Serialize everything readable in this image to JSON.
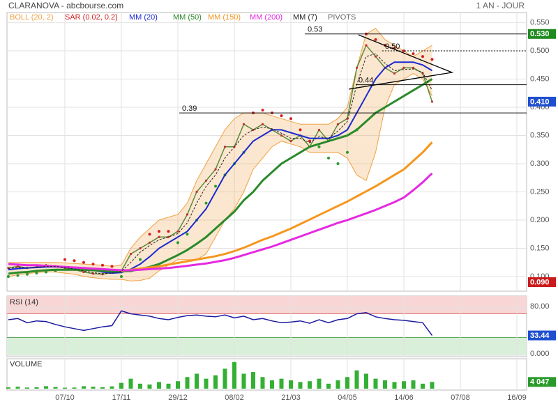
{
  "chart_data": [
    {
      "type": "line",
      "title": "CLARANOVA - abcbourse.com",
      "subtitle": "1 AN - JOUR",
      "categories": [
        null,
        null,
        null,
        null,
        null,
        null,
        "07/10",
        null,
        null,
        null,
        null,
        null,
        "17/11",
        null,
        null,
        null,
        null,
        null,
        "29/12",
        null,
        null,
        null,
        null,
        null,
        "08/02",
        null,
        null,
        null,
        null,
        null,
        "21/03",
        null,
        null,
        null,
        null,
        null,
        "04/05",
        null,
        null,
        null,
        null,
        null,
        "14/06",
        null,
        null,
        null,
        null,
        null,
        "07/08",
        null,
        null,
        null,
        null,
        null,
        "16/09",
        null
      ],
      "values": [
        0.115,
        0.118,
        0.115,
        0.117,
        0.12,
        0.118,
        0.115,
        0.112,
        0.108,
        0.105,
        0.104,
        0.107,
        0.11,
        0.14,
        0.15,
        0.16,
        0.17,
        0.17,
        0.18,
        0.21,
        0.25,
        0.27,
        0.29,
        0.33,
        0.33,
        0.37,
        0.36,
        0.37,
        0.36,
        0.35,
        0.34,
        0.35,
        0.33,
        0.36,
        0.34,
        0.37,
        0.38,
        0.47,
        0.51,
        0.49,
        0.47,
        0.46,
        0.47,
        0.47,
        0.46,
        0.41,
        null,
        null,
        null,
        null,
        null,
        null,
        null,
        null,
        null,
        null
      ],
      "color": "#2a8a2a",
      "series": [
        {
          "name": "BOLL (20, 2)",
          "color": "#f0a040",
          "kind": "band",
          "upper": [
            0.125,
            0.125,
            0.125,
            0.125,
            0.125,
            0.125,
            0.124,
            0.123,
            0.122,
            0.121,
            0.12,
            0.118,
            0.12,
            0.15,
            0.17,
            0.185,
            0.2,
            0.205,
            0.21,
            0.23,
            0.27,
            0.3,
            0.33,
            0.36,
            0.38,
            0.39,
            0.39,
            0.39,
            0.385,
            0.38,
            0.375,
            0.37,
            0.37,
            0.37,
            0.37,
            0.38,
            0.4,
            0.47,
            0.53,
            0.54,
            0.52,
            0.51,
            0.5,
            0.49,
            0.5,
            0.51,
            null,
            null,
            null,
            null,
            null,
            null,
            null,
            null,
            null,
            null
          ],
          "lower": [
            0.1,
            0.103,
            0.105,
            0.107,
            0.108,
            0.108,
            0.106,
            0.104,
            0.1,
            0.098,
            0.096,
            0.095,
            0.095,
            0.092,
            0.093,
            0.097,
            0.11,
            0.12,
            0.13,
            0.13,
            0.13,
            0.14,
            0.17,
            0.2,
            0.22,
            0.25,
            0.29,
            0.31,
            0.33,
            0.34,
            0.335,
            0.33,
            0.32,
            0.32,
            0.32,
            0.32,
            0.31,
            0.28,
            0.27,
            0.32,
            0.4,
            0.44,
            0.45,
            0.46,
            0.45,
            0.42,
            null,
            null,
            null,
            null,
            null,
            null,
            null,
            null,
            null,
            null
          ]
        },
        {
          "name": "SAR (0.02, 0.2)",
          "color": "#d42020",
          "kind": "dots",
          "values": [
            0.1,
            0.102,
            0.104,
            0.106,
            0.108,
            0.11,
            0.13,
            0.128,
            0.125,
            0.122,
            0.12,
            0.118,
            0.1,
            0.11,
            0.13,
            0.175,
            0.18,
            0.18,
            0.16,
            0.175,
            0.2,
            0.23,
            0.26,
            0.28,
            0.3,
            0.32,
            0.39,
            0.395,
            0.39,
            0.385,
            0.38,
            0.36,
            0.34,
            0.33,
            0.31,
            0.3,
            0.32,
            0.36,
            0.53,
            0.52,
            0.51,
            0.505,
            0.5,
            0.495,
            0.49,
            0.485,
            null,
            null,
            null,
            null,
            null,
            null,
            null,
            null,
            null,
            null
          ]
        },
        {
          "name": "MM (20)",
          "color": "#1a2ad0",
          "kind": "line",
          "width": 2,
          "values": [
            0.112,
            0.114,
            0.115,
            0.116,
            0.117,
            0.117,
            0.116,
            0.115,
            0.113,
            0.111,
            0.108,
            0.106,
            0.107,
            0.113,
            0.122,
            0.135,
            0.15,
            0.16,
            0.17,
            0.18,
            0.2,
            0.22,
            0.25,
            0.28,
            0.3,
            0.32,
            0.34,
            0.35,
            0.36,
            0.36,
            0.355,
            0.35,
            0.345,
            0.345,
            0.345,
            0.35,
            0.36,
            0.39,
            0.42,
            0.45,
            0.47,
            0.48,
            0.48,
            0.48,
            0.475,
            0.465,
            null,
            null,
            null,
            null,
            null,
            null,
            null,
            null,
            null,
            null
          ]
        },
        {
          "name": "MM (50)",
          "color": "#2a8a2a",
          "kind": "line",
          "width": 3,
          "values": [
            0.105,
            0.107,
            0.108,
            0.11,
            0.111,
            0.112,
            0.112,
            0.112,
            0.112,
            0.111,
            0.11,
            0.109,
            0.109,
            0.11,
            0.113,
            0.117,
            0.122,
            0.13,
            0.138,
            0.147,
            0.158,
            0.17,
            0.185,
            0.2,
            0.215,
            0.235,
            0.25,
            0.27,
            0.285,
            0.3,
            0.31,
            0.32,
            0.33,
            0.335,
            0.34,
            0.345,
            0.35,
            0.36,
            0.375,
            0.39,
            0.4,
            0.41,
            0.42,
            0.43,
            0.44,
            0.45,
            null,
            null,
            null,
            null,
            null,
            null,
            null,
            null,
            null,
            null
          ]
        },
        {
          "name": "MM (150)",
          "color": "#f5961e",
          "kind": "line",
          "width": 3,
          "values": [
            null,
            null,
            null,
            null,
            null,
            null,
            null,
            null,
            null,
            null,
            null,
            null,
            0.11,
            0.112,
            0.114,
            0.116,
            0.118,
            0.121,
            0.124,
            0.127,
            0.13,
            0.133,
            0.136,
            0.14,
            0.145,
            0.151,
            0.158,
            0.165,
            0.171,
            0.178,
            0.185,
            0.193,
            0.201,
            0.209,
            0.217,
            0.225,
            0.233,
            0.242,
            0.251,
            0.26,
            0.27,
            0.28,
            0.29,
            0.305,
            0.32,
            0.338,
            null,
            null,
            null,
            null,
            null,
            null,
            null,
            null,
            null,
            null
          ]
        },
        {
          "name": "MM (200)",
          "color": "#e52ae0",
          "kind": "line",
          "width": 3,
          "values": [
            0.122,
            0.121,
            0.12,
            0.12,
            0.119,
            0.118,
            0.117,
            0.116,
            0.115,
            0.114,
            0.113,
            0.112,
            0.111,
            0.111,
            0.112,
            0.113,
            0.114,
            0.115,
            0.117,
            0.119,
            0.121,
            0.123,
            0.126,
            0.129,
            0.133,
            0.138,
            0.143,
            0.148,
            0.153,
            0.159,
            0.165,
            0.171,
            0.177,
            0.183,
            0.189,
            0.195,
            0.2,
            0.206,
            0.212,
            0.218,
            0.225,
            0.232,
            0.24,
            0.253,
            0.267,
            0.283,
            null,
            null,
            null,
            null,
            null,
            null,
            null,
            null,
            null,
            null
          ]
        },
        {
          "name": "MM (7)",
          "color": "#222222",
          "kind": "dash",
          "width": 1,
          "values": [
            0.114,
            0.116,
            0.116,
            0.116,
            0.118,
            0.118,
            0.116,
            0.113,
            0.11,
            0.107,
            0.105,
            0.106,
            0.109,
            0.125,
            0.143,
            0.155,
            0.165,
            0.17,
            0.176,
            0.195,
            0.23,
            0.26,
            0.28,
            0.31,
            0.33,
            0.35,
            0.36,
            0.365,
            0.362,
            0.354,
            0.345,
            0.345,
            0.337,
            0.348,
            0.345,
            0.358,
            0.375,
            0.44,
            0.49,
            0.495,
            0.478,
            0.465,
            0.467,
            0.468,
            0.462,
            0.43,
            null,
            null,
            null,
            null,
            null,
            null,
            null,
            null,
            null,
            null
          ]
        },
        {
          "name": "PIVOTS",
          "color": "#000000",
          "kind": "pivots"
        }
      ],
      "pivots": [
        0.53,
        {
          "value": 0.5,
          "label": "0.50"
        },
        0.44,
        0.39
      ],
      "markers": [
        {
          "value": 0.53,
          "label": "0.530",
          "color": "#1f8a1f"
        },
        {
          "value": 0.41,
          "label": "0.410",
          "color": "#1f4fd0"
        },
        {
          "value": 0.09,
          "label": "0.090",
          "color": "#cc1a1a"
        }
      ],
      "ylim": [
        0.074,
        0.568
      ],
      "yticks": [
        {
          "value": 0.1,
          "label": "0.100"
        },
        {
          "value": 0.15,
          "label": "0.150"
        },
        {
          "value": 0.2,
          "label": "0.200"
        },
        {
          "value": 0.25,
          "label": "0.250"
        },
        {
          "value": 0.3,
          "label": "0.300"
        },
        {
          "value": 0.35,
          "label": "0.350"
        },
        {
          "value": 0.4,
          "label": "0.400"
        },
        {
          "value": 0.45,
          "label": "0.450"
        },
        {
          "value": 0.5,
          "label": "0.500"
        },
        {
          "value": 0.55,
          "label": "0.550"
        }
      ],
      "grid": true
    },
    {
      "type": "line",
      "title": "RSI (14)",
      "color": "#1a1aa0",
      "values": [
        60,
        62,
        55,
        58,
        57,
        52,
        48,
        45,
        42,
        45,
        48,
        50,
        75,
        70,
        68,
        66,
        62,
        60,
        64,
        67,
        68,
        66,
        65,
        68,
        63,
        66,
        60,
        62,
        58,
        55,
        56,
        58,
        54,
        60,
        55,
        60,
        62,
        70,
        72,
        65,
        62,
        60,
        59,
        57,
        55,
        33.44,
        null,
        null,
        null,
        null,
        null,
        null,
        null,
        null,
        null,
        null
      ],
      "overbought": 70,
      "oversold": 30,
      "ylim": [
        0,
        100
      ],
      "yticks": [
        {
          "value": 80,
          "label": "80.00"
        },
        {
          "value": 0,
          "label": "0.000"
        }
      ]
    },
    {
      "type": "bar",
      "title": "VOLUME",
      "color": "#33b033",
      "values": [
        800,
        1200,
        700,
        900,
        1500,
        1000,
        600,
        700,
        1500,
        1200,
        900,
        1400,
        3500,
        6000,
        3000,
        2500,
        4000,
        3000,
        4500,
        7000,
        9000,
        6000,
        8000,
        12000,
        16000,
        9000,
        10000,
        7000,
        5000,
        6000,
        5000,
        4000,
        4500,
        6000,
        3000,
        5000,
        7000,
        11000,
        9000,
        6000,
        5000,
        4000,
        4500,
        5000,
        3000,
        4047,
        null,
        null,
        null,
        null,
        null,
        null,
        null,
        null,
        null,
        null
      ],
      "value_labels": [
        null,
        null,
        null,
        null,
        null,
        null,
        null,
        null,
        null,
        null,
        null,
        null,
        null,
        null,
        null,
        null,
        null,
        null,
        null,
        null,
        null,
        null,
        null,
        null,
        null,
        null,
        null,
        null,
        null,
        null,
        null,
        null,
        null,
        null,
        null,
        null,
        null,
        null,
        null,
        null,
        null,
        null,
        null,
        null,
        null,
        "4 047",
        null,
        null,
        null,
        null,
        null,
        null,
        null,
        null,
        null,
        null
      ],
      "ylim": [
        0,
        18000
      ]
    }
  ]
}
